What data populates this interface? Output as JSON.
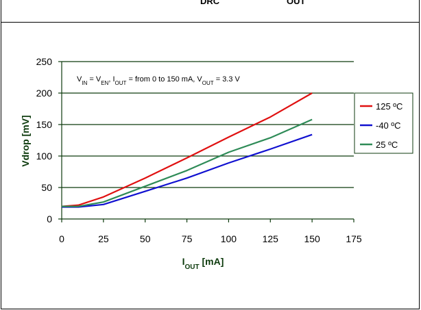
{
  "header": {
    "left_fragment": "DRC",
    "right_fragment": "OUT"
  },
  "chart_data": {
    "type": "line",
    "title": "",
    "annotation": {
      "parts": [
        {
          "t": "V",
          "sub": "IN"
        },
        {
          "t": " = V",
          "sub": "EN"
        },
        {
          "t": ", I",
          "sub": "OUT"
        },
        {
          "t": " = from 0 to 150 mA, V",
          "sub": "OUT"
        },
        {
          "t": " = 3.3 V",
          "sub": ""
        }
      ]
    },
    "xlabel": {
      "main": "I",
      "sub": "OUT",
      "rest": " [mA]"
    },
    "ylabel": "Vdrop [mV]",
    "xlim": [
      0,
      175
    ],
    "ylim": [
      0,
      250
    ],
    "xticks": [
      0,
      25,
      50,
      75,
      100,
      125,
      150,
      175
    ],
    "yticks": [
      0,
      50,
      100,
      150,
      200,
      250
    ],
    "grid": "horizontal",
    "legend_position": "right",
    "series": [
      {
        "name": "125 ºC",
        "color": "#e01010",
        "x": [
          0,
          10,
          25,
          50,
          75,
          100,
          125,
          150
        ],
        "y": [
          20,
          22,
          35,
          65,
          97,
          130,
          162,
          200
        ]
      },
      {
        "name": "-40 ºC",
        "color": "#1010d0",
        "x": [
          0,
          10,
          25,
          50,
          75,
          100,
          125,
          150
        ],
        "y": [
          19,
          19,
          23,
          44,
          65,
          89,
          111,
          134
        ]
      },
      {
        "name": "25 ºC",
        "color": "#2e8b57",
        "x": [
          0,
          10,
          25,
          50,
          75,
          100,
          125,
          150
        ],
        "y": [
          20,
          20,
          27,
          52,
          77,
          106,
          129,
          158
        ]
      }
    ]
  }
}
